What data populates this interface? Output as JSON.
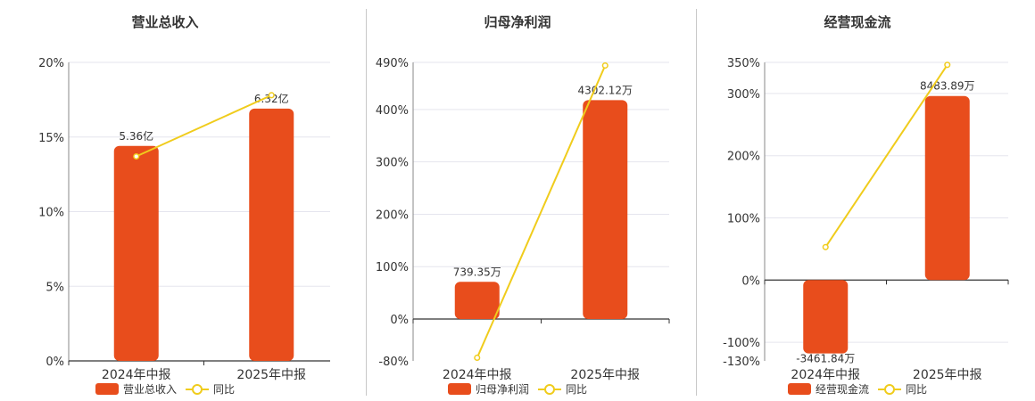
{
  "colors": {
    "bar": "#e84d1c",
    "line": "#f0cc1c",
    "axis": "#333333",
    "grid": "#e5e5ee"
  },
  "chart_data": [
    {
      "type": "bar",
      "title": "营业总收入",
      "categories": [
        "2024年中报",
        "2025年中报"
      ],
      "series": [
        {
          "name": "营业总收入",
          "type": "bar",
          "values": [
            14.4,
            16.9
          ],
          "labels": [
            "5.36亿",
            "6.32亿"
          ]
        },
        {
          "name": "同比",
          "type": "line",
          "values": [
            13.7,
            17.8
          ]
        }
      ],
      "yticks": [
        0,
        5,
        10,
        15,
        20
      ],
      "ytick_labels": [
        "0%",
        "5%",
        "10%",
        "15%",
        "20%"
      ],
      "ylim": [
        0,
        20
      ],
      "legend": [
        "营业总收入",
        "同比"
      ]
    },
    {
      "type": "bar",
      "title": "归母净利润",
      "categories": [
        "2024年中报",
        "2025年中报"
      ],
      "series": [
        {
          "name": "归母净利润",
          "type": "bar",
          "values": [
            71,
            418
          ],
          "labels": [
            "739.35万",
            "4302.12万"
          ]
        },
        {
          "name": "同比",
          "type": "line",
          "values": [
            -74,
            484
          ]
        }
      ],
      "yticks": [
        -80,
        0,
        100,
        200,
        300,
        400,
        490
      ],
      "ytick_labels": [
        "-80%",
        "0%",
        "100%",
        "200%",
        "300%",
        "400%",
        "490%"
      ],
      "ylim": [
        -80,
        490
      ],
      "legend": [
        "归母净利润",
        "同比"
      ]
    },
    {
      "type": "bar",
      "title": "经营现金流",
      "categories": [
        "2024年中报",
        "2025年中报"
      ],
      "series": [
        {
          "name": "经营现金流",
          "type": "bar",
          "values": [
            -118,
            296
          ],
          "labels": [
            "-3461.84万",
            "8483.89万"
          ]
        },
        {
          "name": "同比",
          "type": "line",
          "values": [
            53,
            346
          ]
        }
      ],
      "yticks": [
        -130,
        -100,
        0,
        100,
        200,
        300,
        350
      ],
      "ytick_labels": [
        "-130%",
        "-100%",
        "0%",
        "100%",
        "200%",
        "300%",
        "350%"
      ],
      "ylim": [
        -130,
        350
      ],
      "legend": [
        "经营现金流",
        "同比"
      ]
    }
  ]
}
